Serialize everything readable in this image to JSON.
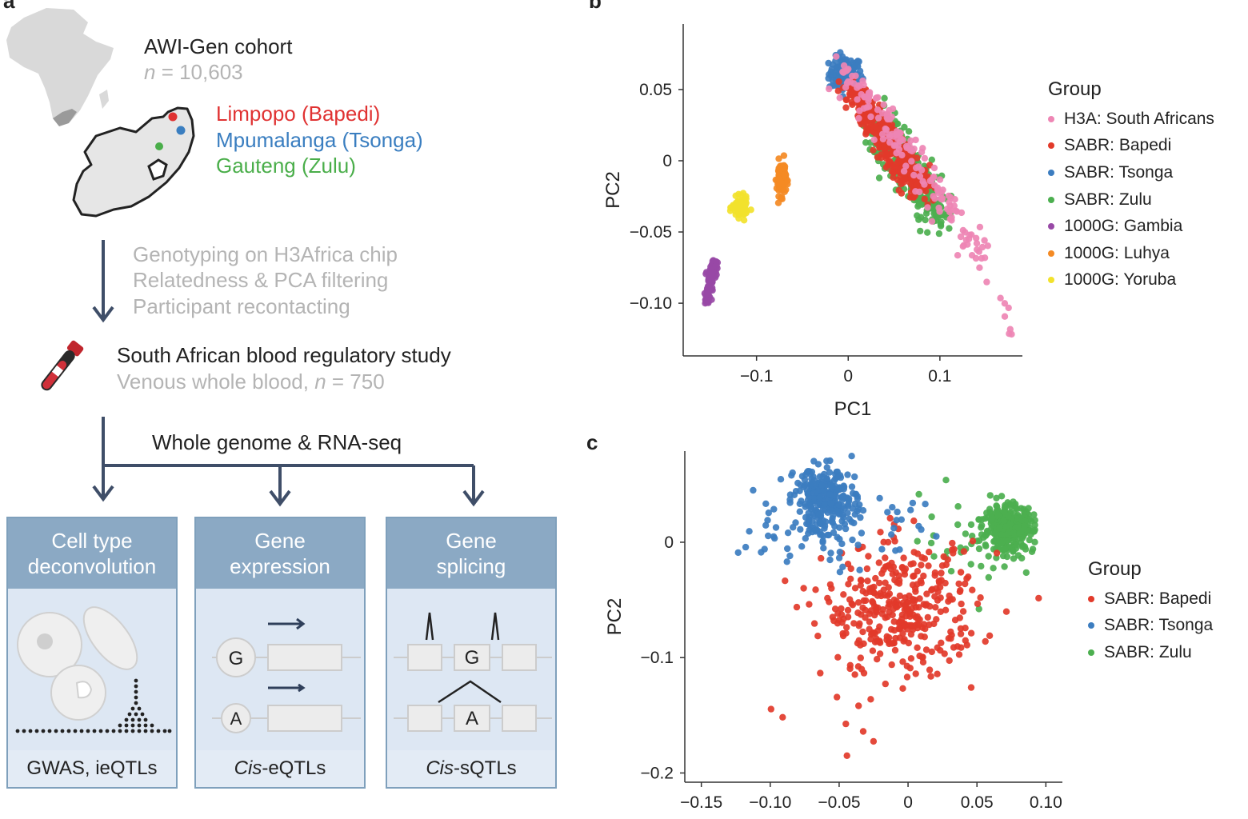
{
  "panel_a": {
    "letter": "a",
    "cohort_title": "AWI-Gen cohort",
    "cohort_n_label": "n",
    "cohort_n_value": " = 10,603",
    "regions": [
      {
        "label": "Limpopo (Bapedi)",
        "color": "#e03232"
      },
      {
        "label": "Mpumalanga (Tsonga)",
        "color": "#3a7ec0"
      },
      {
        "label": "Gauteng (Zulu)",
        "color": "#4aae4a"
      }
    ],
    "qc_steps": [
      "Genotyping on H3Africa chip",
      "Relatedness & PCA filtering",
      "Participant recontacting"
    ],
    "study_title": "South African blood regulatory study",
    "study_sub_prefix": "Venous whole blood, ",
    "study_sub_n": "n",
    "study_sub_value": " = 750",
    "seq_label": "Whole genome & RNA-seq",
    "boxes": [
      {
        "title": [
          "Cell type",
          "deconvolution"
        ],
        "footer": "GWAS, ieQTLs",
        "footer_italic": ""
      },
      {
        "title": [
          "Gene",
          "expression"
        ],
        "footer_italic": "Cis",
        "footer": "-eQTLs"
      },
      {
        "title": [
          "Gene",
          "splicing"
        ],
        "footer_italic": "Cis",
        "footer": "-sQTLs"
      }
    ],
    "allele_major": "G",
    "allele_minor": "A"
  },
  "panel_b": {
    "letter": "b",
    "chart_data": {
      "type": "scatter",
      "title": "",
      "xlabel": "PC1",
      "ylabel": "PC2",
      "xlim": [
        -0.18,
        0.19
      ],
      "ylim": [
        -0.137,
        0.096
      ],
      "xticks": [
        {
          "v": -0.1,
          "label": "−0.1"
        },
        {
          "v": 0,
          "label": "0"
        },
        {
          "v": 0.1,
          "label": "0.1"
        }
      ],
      "yticks": [
        {
          "v": 0.05,
          "label": "0.05"
        },
        {
          "v": 0,
          "label": "0"
        },
        {
          "v": -0.05,
          "label": "−0.05"
        },
        {
          "v": -0.1,
          "label": "−0.10"
        }
      ],
      "legend_title": "Group",
      "series": [
        {
          "name": "H3A: South Africans",
          "color": "#ee86b4"
        },
        {
          "name": "SABR: Bapedi",
          "color": "#e23a2a"
        },
        {
          "name": "SABR: Tsonga",
          "color": "#3c7dc0"
        },
        {
          "name": "SABR: Zulu",
          "color": "#4caf4f"
        },
        {
          "name": "1000G: Gambia",
          "color": "#9849a6"
        },
        {
          "name": "1000G: Luhya",
          "color": "#f48a24"
        },
        {
          "name": "1000G: Yoruba",
          "color": "#f2e22c"
        }
      ]
    }
  },
  "panel_c": {
    "letter": "c",
    "chart_data": {
      "type": "scatter",
      "title": "",
      "xlabel": "",
      "ylabel": "PC2",
      "xlim": [
        -0.162,
        0.112
      ],
      "ylim": [
        -0.208,
        0.079
      ],
      "xticks": [
        {
          "v": -0.15,
          "label": "−0.15"
        },
        {
          "v": -0.1,
          "label": "−0.10"
        },
        {
          "v": -0.05,
          "label": "−0.05"
        },
        {
          "v": 0,
          "label": "0"
        },
        {
          "v": 0.05,
          "label": "0.05"
        },
        {
          "v": 0.1,
          "label": "0.10"
        }
      ],
      "yticks": [
        {
          "v": 0,
          "label": "0"
        },
        {
          "v": -0.1,
          "label": "−0.1"
        },
        {
          "v": -0.2,
          "label": "−0.2"
        }
      ],
      "legend_title": "Group",
      "series": [
        {
          "name": "SABR: Bapedi",
          "color": "#e23a2a"
        },
        {
          "name": "SABR: Tsonga",
          "color": "#3c7dc0"
        },
        {
          "name": "SABR: Zulu",
          "color": "#4caf4f"
        }
      ]
    }
  }
}
